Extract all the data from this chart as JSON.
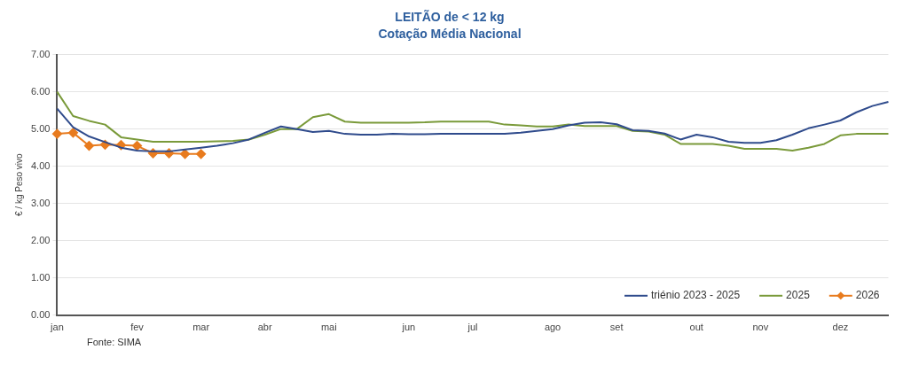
{
  "chart_data": {
    "type": "line",
    "title": "LEITÃO de < 12 kg",
    "subtitle": "Cotação Média Nacional",
    "ylabel": "€ / kg Peso vivo",
    "categories": [
      "jan",
      null,
      null,
      null,
      null,
      "fev",
      null,
      null,
      null,
      "mar",
      null,
      null,
      null,
      "abr",
      null,
      null,
      null,
      "mai",
      null,
      null,
      null,
      null,
      "jun",
      null,
      null,
      null,
      "jul",
      null,
      null,
      null,
      null,
      "ago",
      null,
      null,
      null,
      "set",
      null,
      null,
      null,
      null,
      "out",
      null,
      null,
      null,
      "nov",
      null,
      null,
      null,
      null,
      "dez",
      null,
      null,
      null
    ],
    "series": [
      {
        "name": "triénio 2023 - 2025",
        "color": "#2f4b8c",
        "marker": "none",
        "values": [
          5.55,
          5.05,
          4.8,
          4.65,
          4.5,
          4.42,
          4.4,
          4.4,
          4.45,
          4.5,
          4.55,
          4.62,
          4.72,
          4.9,
          5.07,
          5.0,
          4.92,
          4.95,
          4.87,
          4.85,
          4.85,
          4.87,
          4.86,
          4.86,
          4.87,
          4.87,
          4.87,
          4.87,
          4.87,
          4.9,
          4.95,
          5.0,
          5.1,
          5.17,
          5.18,
          5.13,
          4.97,
          4.95,
          4.88,
          4.72,
          4.85,
          4.78,
          4.66,
          4.63,
          4.63,
          4.7,
          4.85,
          5.02,
          5.12,
          5.23,
          5.45,
          5.62,
          5.73
        ]
      },
      {
        "name": "2025",
        "color": "#7a9a3a",
        "marker": "none",
        "values": [
          6.0,
          5.35,
          5.22,
          5.12,
          4.78,
          4.72,
          4.66,
          4.66,
          4.66,
          4.66,
          4.67,
          4.68,
          4.72,
          4.85,
          5.0,
          5.0,
          5.32,
          5.4,
          5.2,
          5.17,
          5.17,
          5.17,
          5.17,
          5.18,
          5.2,
          5.2,
          5.2,
          5.2,
          5.12,
          5.1,
          5.07,
          5.07,
          5.12,
          5.08,
          5.08,
          5.08,
          4.95,
          4.93,
          4.85,
          4.6,
          4.6,
          4.6,
          4.55,
          4.47,
          4.47,
          4.47,
          4.42,
          4.5,
          4.6,
          4.83,
          4.87,
          4.87,
          4.87
        ]
      },
      {
        "name": "2026",
        "color": "#e87b1e",
        "marker": "diamond",
        "values": [
          4.87,
          4.9,
          4.55,
          4.58,
          4.57,
          4.55,
          4.35,
          4.35,
          4.33,
          4.33,
          null,
          null,
          null,
          null,
          null,
          null,
          null,
          null,
          null,
          null,
          null,
          null,
          null,
          null,
          null,
          null,
          null,
          null,
          null,
          null,
          null,
          null,
          null,
          null,
          null,
          null,
          null,
          null,
          null,
          null,
          null,
          null,
          null,
          null,
          null,
          null,
          null,
          null,
          null,
          null,
          null,
          null,
          null
        ]
      }
    ],
    "ylim": [
      0,
      7
    ],
    "yticks": [
      {
        "value": 0,
        "label": "0.00"
      },
      {
        "value": 1,
        "label": "1.00"
      },
      {
        "value": 2,
        "label": "2.00"
      },
      {
        "value": 3,
        "label": "3.00"
      },
      {
        "value": 4,
        "label": "4.00"
      },
      {
        "value": 5,
        "label": "5.00"
      },
      {
        "value": 6,
        "label": "6.00"
      },
      {
        "value": 7,
        "label": "7.00"
      }
    ],
    "grid": "y",
    "legend": "bottom right",
    "line_style": "solid",
    "annotations": [
      "Fonte: SIMA"
    ]
  }
}
